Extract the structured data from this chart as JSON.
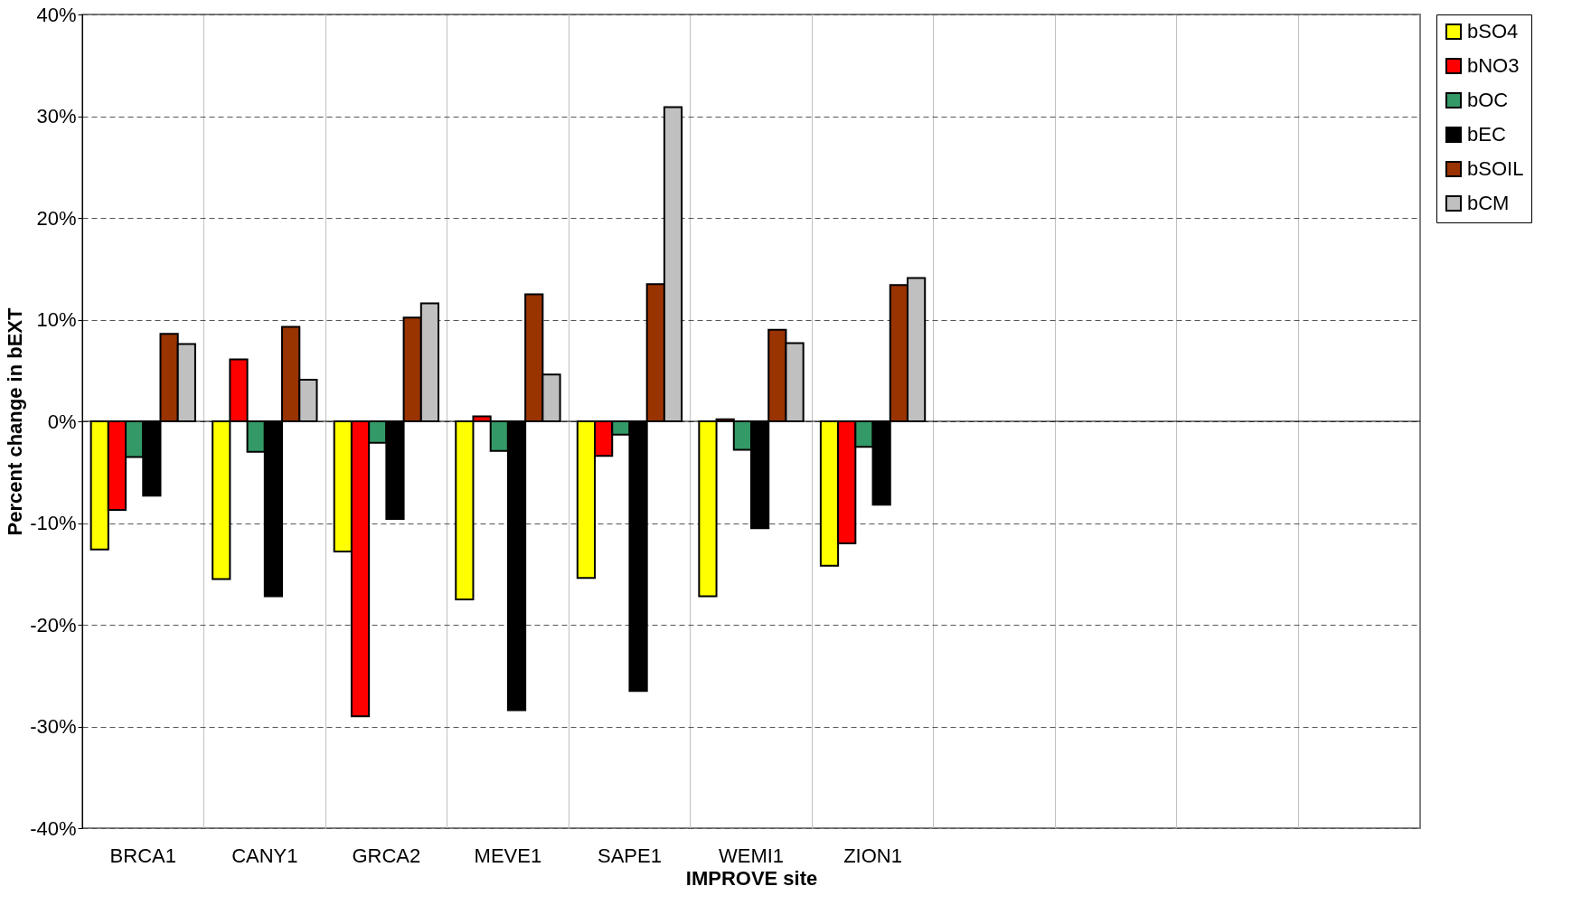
{
  "chart_data": {
    "type": "bar",
    "xlabel": "IMPROVE site",
    "ylabel": "Percent change in bEXT",
    "categories": [
      "BRCA1",
      "CANY1",
      "GRCA2",
      "MEVE1",
      "SAPE1",
      "WEMI1",
      "ZION1",
      null,
      null,
      null,
      null
    ],
    "series": [
      {
        "name": "bSO4",
        "color": "#ffff00",
        "values": [
          -12.6,
          -15.5,
          -12.8,
          -17.5,
          -15.4,
          -17.2,
          -14.2,
          null,
          null,
          null,
          null
        ]
      },
      {
        "name": "bNO3",
        "color": "#ff0000",
        "values": [
          -8.7,
          6.1,
          -29.0,
          0.5,
          -3.4,
          0.2,
          -12.0,
          null,
          null,
          null,
          null
        ]
      },
      {
        "name": "bOC",
        "color": "#339966",
        "values": [
          -3.5,
          -3.0,
          -2.1,
          -2.9,
          -1.3,
          -2.8,
          -2.5,
          null,
          null,
          null,
          null
        ]
      },
      {
        "name": "bEC",
        "color": "#000000",
        "values": [
          -7.3,
          -17.2,
          -9.6,
          -28.4,
          -26.5,
          -10.5,
          -8.2,
          null,
          null,
          null,
          null
        ]
      },
      {
        "name": "bSOIL",
        "color": "#993300",
        "values": [
          8.6,
          9.3,
          10.2,
          12.5,
          13.5,
          9.0,
          13.4,
          null,
          null,
          null,
          null
        ]
      },
      {
        "name": "bCM",
        "color": "#c0c0c0",
        "values": [
          7.6,
          4.1,
          11.6,
          4.6,
          30.9,
          7.7,
          14.1,
          null,
          null,
          null,
          null
        ]
      }
    ],
    "ylim": [
      -40,
      40
    ],
    "yticks": [
      {
        "value": -40,
        "label": "-40%"
      },
      {
        "value": -30,
        "label": "-30%"
      },
      {
        "value": -20,
        "label": "-20%"
      },
      {
        "value": -10,
        "label": "-10%"
      },
      {
        "value": 0,
        "label": "0%"
      },
      {
        "value": 10,
        "label": "10%"
      },
      {
        "value": 20,
        "label": "20%"
      },
      {
        "value": 30,
        "label": "30%"
      },
      {
        "value": 40,
        "label": "40%"
      }
    ],
    "ref_lines": [
      {
        "axis": "y",
        "value": 0,
        "label": null,
        "color": "#000000"
      }
    ],
    "grid": true,
    "legend": "right"
  }
}
